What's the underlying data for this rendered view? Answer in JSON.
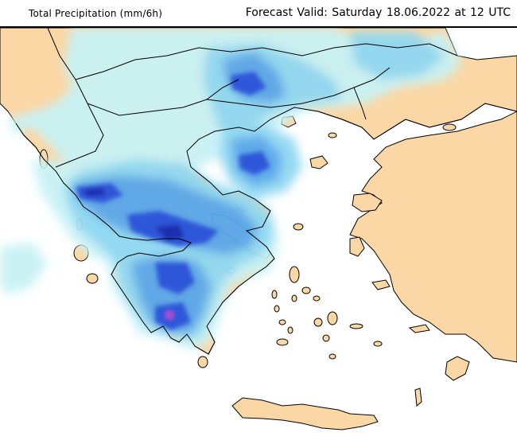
{
  "header": {
    "left_title": "Total Precipitation (mm/6h)",
    "forecast_valid": "Forecast Valid:  Saturday 18.06.2022 at 12 UTC"
  },
  "colors": {
    "sea": "#ffffff",
    "land": "#fbd7a5",
    "precip_light": "#c8f2f5",
    "precip_low": "#8fd8f2",
    "precip_mid": "#58a6ea",
    "precip_high": "#2f57d9",
    "precip_heavy": "#1a2fb0",
    "precip_extreme": "#e040c8",
    "borders": "#000000"
  }
}
